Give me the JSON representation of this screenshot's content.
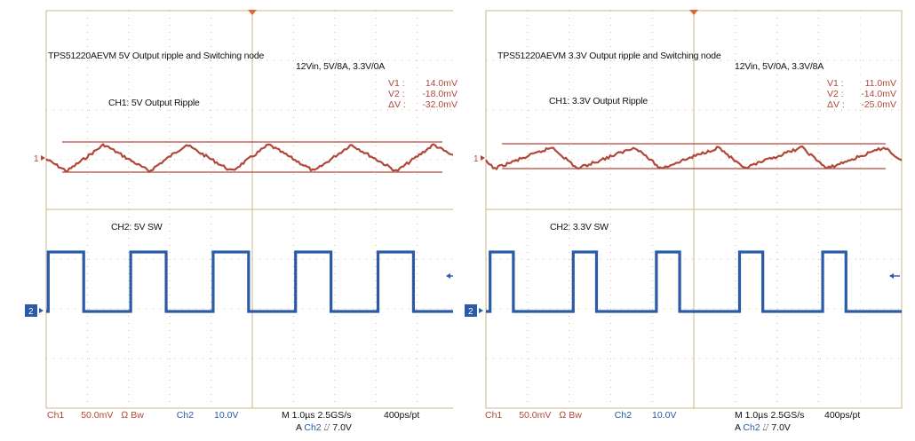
{
  "chart_data": [
    {
      "type": "line",
      "title": "TPS51220AEVM 5V Output ripple and Switching node",
      "condition": "12Vin, 5V/8A, 3.3V/0A",
      "measurements": [
        {
          "label": "V1 :",
          "value": "14.0mV"
        },
        {
          "label": "V2 :",
          "value": "-18.0mV"
        },
        {
          "label": "ΔV :",
          "value": "-32.0mV"
        }
      ],
      "series": [
        {
          "name": "CH1: 5V Output Ripple",
          "marker": "1",
          "color": "#b0483a",
          "shape": "triangle",
          "period_us": 2.0,
          "low_us": 0.5,
          "high_us": 1.4
        },
        {
          "name": "CH2: 5V SW",
          "marker": "2",
          "color": "#2a5aa8",
          "shape": "square",
          "period_us": 2.0,
          "high_start_us": 0.05,
          "duty": 0.43
        }
      ],
      "status": {
        "ch1": "Ch1",
        "ch1_scale": "50.0mV",
        "ch1_flags": "Ω Bw",
        "ch2": "Ch2",
        "ch2_scale": "10.0V",
        "timebase": "M 1.0µs 2.5GS/s",
        "resolution": "400ps/pt",
        "trigger_prefix": "A",
        "trigger_ch": "Ch2",
        "trigger_level": "⌰ 7.0V"
      },
      "grid": true
    },
    {
      "type": "line",
      "title": "TPS51220AEVM 3.3V Output ripple and Switching node",
      "condition": "12Vin, 5V/0A, 3.3V/8A",
      "measurements": [
        {
          "label": "V1 :",
          "value": "11.0mV"
        },
        {
          "label": "V2 :",
          "value": "-14.0mV"
        },
        {
          "label": "ΔV :",
          "value": "-25.0mV"
        }
      ],
      "series": [
        {
          "name": "CH1: 3.3V Output Ripple",
          "marker": "1",
          "color": "#b0483a",
          "shape": "triangle",
          "period_us": 2.0,
          "low_us": 0.2,
          "high_us": 1.6
        },
        {
          "name": "CH2: 3.3V SW",
          "marker": "2",
          "color": "#2a5aa8",
          "shape": "square",
          "period_us": 2.0,
          "high_start_us": 0.1,
          "duty": 0.28
        }
      ],
      "status": {
        "ch1": "Ch1",
        "ch1_scale": "50.0mV",
        "ch1_flags": "Ω Bw",
        "ch2": "Ch2",
        "ch2_scale": "10.0V",
        "timebase": "M 1.0µs 2.5GS/s",
        "resolution": "400ps/pt",
        "trigger_prefix": "A",
        "trigger_ch": "Ch2",
        "trigger_level": "⌰ 7.0V"
      },
      "grid": true
    }
  ]
}
